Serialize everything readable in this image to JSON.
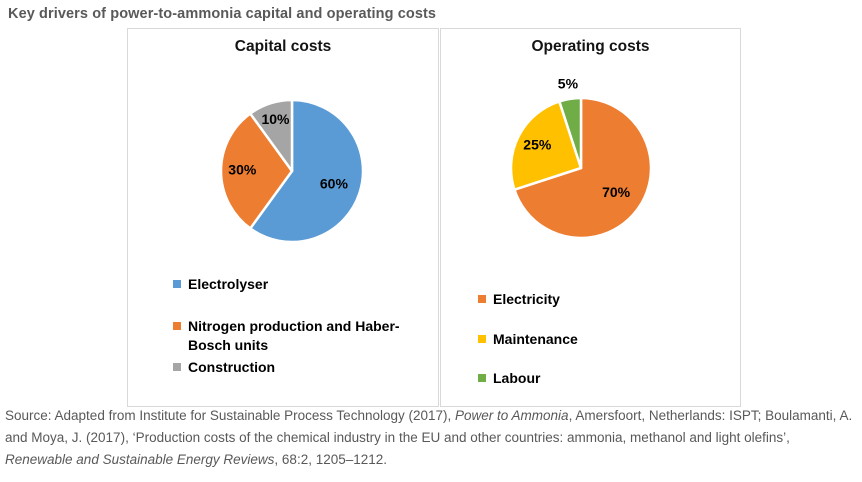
{
  "page": {
    "title": "Key drivers of power-to-ammonia capital and operating costs"
  },
  "chart_data": [
    {
      "type": "pie",
      "title": "Capital costs",
      "labels": [
        "Electrolyser",
        "Nitrogen production and Haber-Bosch units",
        "Construction"
      ],
      "values": [
        60,
        30,
        10
      ],
      "value_labels": [
        "60%",
        "30%",
        "10%"
      ],
      "colors": [
        "#5B9BD5",
        "#ED7D31",
        "#A5A5A5"
      ],
      "start_angle_deg": 0,
      "direction": "clockwise",
      "slice_border_color": "#FFFFFF",
      "label_color": "#000000",
      "legend_position": "bottom-left"
    },
    {
      "type": "pie",
      "title": "Operating costs",
      "labels": [
        "Electricity",
        "Maintenance",
        "Labour"
      ],
      "values": [
        70,
        25,
        5
      ],
      "value_labels": [
        "70%",
        "25%",
        "5%"
      ],
      "colors": [
        "#ED7D31",
        "#FFC000",
        "#70AD47"
      ],
      "start_angle_deg": 0,
      "direction": "clockwise",
      "slice_border_color": "#FFFFFF",
      "label_color": "#000000",
      "legend_position": "bottom-left"
    }
  ],
  "source": {
    "segments": [
      {
        "text": "Source: Adapted from Institute for Sustainable Process Technology (2017), ",
        "italic": false
      },
      {
        "text": "Power to Ammonia",
        "italic": true
      },
      {
        "text": ", Amersfoort, Netherlands: ISPT; Boulamanti, A. and Moya, J. (2017), ‘Production costs of the chemical industry in the EU and other countries: ammonia, methanol and light olefins’, ",
        "italic": false
      },
      {
        "text": "Renewable and Sustainable Energy Reviews",
        "italic": true
      },
      {
        "text": ", 68:2, 1205–1212.",
        "italic": false
      }
    ]
  }
}
